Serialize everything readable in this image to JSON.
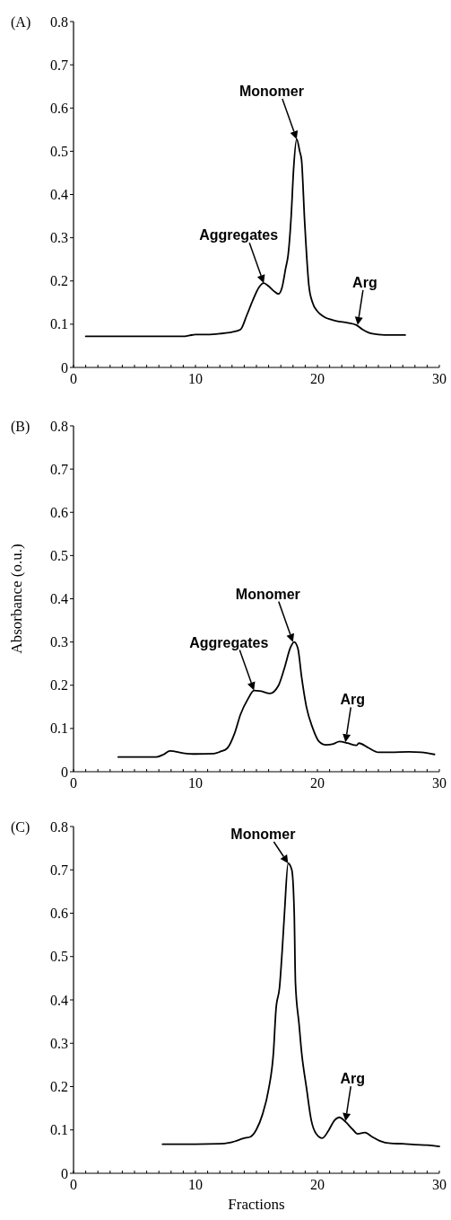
{
  "chart_data": [
    {
      "type": "line",
      "title": "(A)",
      "xlim": [
        0,
        30
      ],
      "ylim": [
        0,
        0.8
      ],
      "xticks": [
        0,
        {
          "value": 1,
          "label": null
        },
        {
          "value": 2,
          "label": null
        },
        {
          "value": 3,
          "label": null
        },
        {
          "value": 4,
          "label": null
        },
        {
          "value": 5,
          "label": null
        },
        {
          "value": 6,
          "label": null
        },
        {
          "value": 7,
          "label": null
        },
        {
          "value": 8,
          "label": null
        },
        {
          "value": 9,
          "label": null
        },
        10,
        {
          "value": 11,
          "label": null
        },
        {
          "value": 12,
          "label": null
        },
        {
          "value": 13,
          "label": null
        },
        {
          "value": 14,
          "label": null
        },
        {
          "value": 15,
          "label": null
        },
        {
          "value": 16,
          "label": null
        },
        {
          "value": 17,
          "label": null
        },
        {
          "value": 18,
          "label": null
        },
        {
          "value": 19,
          "label": null
        },
        20,
        {
          "value": 21,
          "label": null
        },
        {
          "value": 22,
          "label": null
        },
        {
          "value": 23,
          "label": null
        },
        {
          "value": 24,
          "label": null
        },
        {
          "value": 25,
          "label": null
        },
        {
          "value": 26,
          "label": null
        },
        {
          "value": 27,
          "label": null
        },
        {
          "value": 28,
          "label": null
        },
        {
          "value": 29,
          "label": null
        },
        30
      ],
      "yticks": [
        {
          "value": 0,
          "label": "0"
        },
        {
          "value": 0.1,
          "label": "0.1"
        },
        {
          "value": 0.2,
          "label": "0.2"
        },
        {
          "value": 0.3,
          "label": "0.3"
        },
        {
          "value": 0.4,
          "label": "0.4"
        },
        {
          "value": 0.5,
          "label": "0.5"
        },
        {
          "value": 0.6,
          "label": "0.6"
        },
        {
          "value": 0.7,
          "label": "0.7"
        },
        {
          "value": 0.8,
          "label": "0.8"
        }
      ],
      "series": [
        {
          "color": "#000000",
          "x": [
            1,
            5,
            9,
            9.5,
            10,
            11,
            12,
            13,
            13.7,
            14.2,
            14.7,
            15.2,
            15.6,
            16.0,
            16.5,
            16.8,
            17.1,
            17.4,
            17.6,
            17.85,
            18.05,
            18.3,
            18.55,
            18.7,
            18.95,
            19.3,
            19.6,
            20.0,
            20.5,
            21.5,
            22.5,
            23.2,
            23.7,
            24.5,
            25.5,
            27.2
          ],
          "values": [
            0.072,
            0.072,
            0.072,
            0.074,
            0.076,
            0.076,
            0.078,
            0.082,
            0.088,
            0.12,
            0.155,
            0.185,
            0.195,
            0.188,
            0.175,
            0.17,
            0.185,
            0.23,
            0.26,
            0.35,
            0.46,
            0.528,
            0.5,
            0.48,
            0.34,
            0.19,
            0.15,
            0.13,
            0.118,
            0.108,
            0.103,
            0.098,
            0.088,
            0.078,
            0.075,
            0.075
          ]
        }
      ],
      "annotations": [
        {
          "text": "Monomer",
          "x": 18.3,
          "y": 0.528
        },
        {
          "text": "Aggregates",
          "x": 15.6,
          "y": 0.195
        },
        {
          "text": "Arg",
          "x": 23.3,
          "y": 0.098
        }
      ]
    },
    {
      "type": "line",
      "title": "(B)",
      "ylabel": "Absorbance (o.u.)",
      "xlim": [
        0,
        30
      ],
      "ylim": [
        0,
        0.8
      ],
      "xticks": [
        0,
        {
          "value": 1,
          "label": null
        },
        {
          "value": 2,
          "label": null
        },
        {
          "value": 3,
          "label": null
        },
        {
          "value": 4,
          "label": null
        },
        {
          "value": 5,
          "label": null
        },
        {
          "value": 6,
          "label": null
        },
        {
          "value": 7,
          "label": null
        },
        {
          "value": 8,
          "label": null
        },
        {
          "value": 9,
          "label": null
        },
        10,
        {
          "value": 11,
          "label": null
        },
        {
          "value": 12,
          "label": null
        },
        {
          "value": 13,
          "label": null
        },
        {
          "value": 14,
          "label": null
        },
        {
          "value": 15,
          "label": null
        },
        {
          "value": 16,
          "label": null
        },
        {
          "value": 17,
          "label": null
        },
        {
          "value": 18,
          "label": null
        },
        {
          "value": 19,
          "label": null
        },
        20,
        {
          "value": 21,
          "label": null
        },
        {
          "value": 22,
          "label": null
        },
        {
          "value": 23,
          "label": null
        },
        {
          "value": 24,
          "label": null
        },
        {
          "value": 25,
          "label": null
        },
        {
          "value": 26,
          "label": null
        },
        {
          "value": 27,
          "label": null
        },
        {
          "value": 28,
          "label": null
        },
        {
          "value": 29,
          "label": null
        },
        30
      ],
      "yticks": [
        {
          "value": 0,
          "label": "0"
        },
        {
          "value": 0.1,
          "label": "0.1"
        },
        {
          "value": 0.2,
          "label": "0.2"
        },
        {
          "value": 0.3,
          "label": "0.3"
        },
        {
          "value": 0.4,
          "label": "0.4"
        },
        {
          "value": 0.5,
          "label": "0.5"
        },
        {
          "value": 0.6,
          "label": "0.6"
        },
        {
          "value": 0.7,
          "label": "0.7"
        },
        {
          "value": 0.8,
          "label": "0.8"
        }
      ],
      "series": [
        {
          "color": "#000000",
          "x": [
            3.67,
            5,
            6.8,
            7.4,
            7.9,
            9,
            10,
            11.5,
            12,
            12.6,
            13.2,
            13.7,
            14.3,
            14.8,
            15.4,
            16.1,
            16.8,
            17.3,
            17.8,
            18.1,
            18.4,
            18.7,
            19.1,
            19.6,
            20.1,
            20.7,
            21.3,
            21.8,
            22.5,
            23.2,
            23.4,
            24.2,
            25.0,
            26,
            27.5,
            28.5,
            29.6
          ],
          "values": [
            0.034,
            0.034,
            0.034,
            0.04,
            0.048,
            0.043,
            0.041,
            0.042,
            0.046,
            0.054,
            0.088,
            0.133,
            0.168,
            0.188,
            0.186,
            0.181,
            0.199,
            0.24,
            0.288,
            0.3,
            0.285,
            0.22,
            0.15,
            0.102,
            0.071,
            0.062,
            0.064,
            0.07,
            0.066,
            0.061,
            0.066,
            0.055,
            0.045,
            0.045,
            0.046,
            0.045,
            0.04
          ]
        }
      ],
      "annotations": [
        {
          "text": "Monomer",
          "x": 18.0,
          "y": 0.3
        },
        {
          "text": "Aggregates",
          "x": 14.8,
          "y": 0.188
        },
        {
          "text": "Arg",
          "x": 22.3,
          "y": 0.068
        }
      ]
    },
    {
      "type": "line",
      "title": "(C)",
      "xlabel": "Fractions",
      "xlim": [
        0,
        30
      ],
      "ylim": [
        0,
        0.8
      ],
      "xticks": [
        0,
        {
          "value": 1,
          "label": null
        },
        {
          "value": 2,
          "label": null
        },
        {
          "value": 3,
          "label": null
        },
        {
          "value": 4,
          "label": null
        },
        {
          "value": 5,
          "label": null
        },
        {
          "value": 6,
          "label": null
        },
        {
          "value": 7,
          "label": null
        },
        {
          "value": 8,
          "label": null
        },
        {
          "value": 9,
          "label": null
        },
        10,
        {
          "value": 11,
          "label": null
        },
        {
          "value": 12,
          "label": null
        },
        {
          "value": 13,
          "label": null
        },
        {
          "value": 14,
          "label": null
        },
        {
          "value": 15,
          "label": null
        },
        {
          "value": 16,
          "label": null
        },
        {
          "value": 17,
          "label": null
        },
        {
          "value": 18,
          "label": null
        },
        {
          "value": 19,
          "label": null
        },
        20,
        {
          "value": 21,
          "label": null
        },
        {
          "value": 22,
          "label": null
        },
        {
          "value": 23,
          "label": null
        },
        {
          "value": 24,
          "label": null
        },
        {
          "value": 25,
          "label": null
        },
        {
          "value": 26,
          "label": null
        },
        {
          "value": 27,
          "label": null
        },
        {
          "value": 28,
          "label": null
        },
        {
          "value": 29,
          "label": null
        },
        30
      ],
      "yticks": [
        {
          "value": 0,
          "label": "0"
        },
        {
          "value": 0.1,
          "label": "0.1"
        },
        {
          "value": 0.2,
          "label": "0.2"
        },
        {
          "value": 0.3,
          "label": "0.3"
        },
        {
          "value": 0.4,
          "label": "0.4"
        },
        {
          "value": 0.5,
          "label": "0.5"
        },
        {
          "value": 0.6,
          "label": "0.6"
        },
        {
          "value": 0.7,
          "label": "0.7"
        },
        {
          "value": 0.8,
          "label": "0.8"
        }
      ],
      "series": [
        {
          "color": "#000000",
          "x": [
            7.3,
            10,
            12,
            13,
            14,
            14.5,
            15.0,
            15.5,
            16.0,
            16.4,
            16.6,
            16.9,
            17.1,
            17.3,
            17.6,
            17.9,
            18.1,
            18.2,
            18.5,
            18.7,
            19.1,
            19.5,
            19.9,
            20.4,
            20.9,
            21.4,
            21.8,
            22.3,
            22.9,
            23.3,
            23.9,
            24.5,
            25.1,
            26,
            27,
            28,
            29,
            30
          ],
          "values": [
            0.067,
            0.067,
            0.068,
            0.072,
            0.081,
            0.084,
            0.101,
            0.136,
            0.194,
            0.28,
            0.377,
            0.43,
            0.508,
            0.6,
            0.715,
            0.7,
            0.6,
            0.44,
            0.343,
            0.28,
            0.198,
            0.122,
            0.091,
            0.081,
            0.098,
            0.122,
            0.129,
            0.119,
            0.101,
            0.091,
            0.094,
            0.084,
            0.075,
            0.069,
            0.068,
            0.066,
            0.065,
            0.062
          ]
        }
      ],
      "annotations": [
        {
          "text": "Monomer",
          "x": 17.6,
          "y": 0.715
        },
        {
          "text": "Arg",
          "x": 22.3,
          "y": 0.12
        }
      ]
    }
  ]
}
